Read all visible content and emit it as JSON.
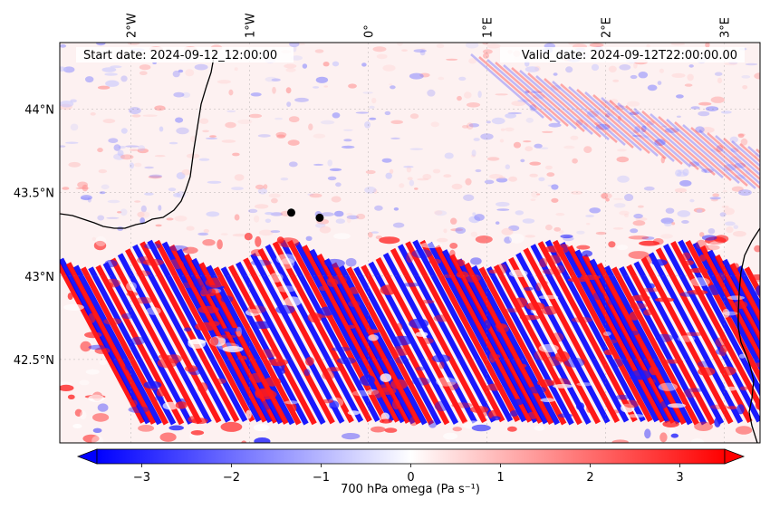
{
  "map": {
    "start_date": "Start date: 2024-09-12_12:00:00",
    "valid_date": "Valid_date: 2024-09-12T22:00:00.00",
    "lon_ticks": [
      {
        "label": "2°W",
        "lon": -2
      },
      {
        "label": "1°W",
        "lon": -1
      },
      {
        "label": "0°",
        "lon": 0
      },
      {
        "label": "1°E",
        "lon": 1
      },
      {
        "label": "2°E",
        "lon": 2
      },
      {
        "label": "3°E",
        "lon": 3
      }
    ],
    "lat_ticks": [
      {
        "label": "44°N",
        "lat": 44.0
      },
      {
        "label": "43.5°N",
        "lat": 43.5
      },
      {
        "label": "43°N",
        "lat": 43.0
      },
      {
        "label": "42.5°N",
        "lat": 42.5
      }
    ],
    "extent": {
      "lon": [
        -2.6,
        3.3
      ],
      "lat": [
        42.0,
        44.4
      ]
    },
    "stations": [
      {
        "lon": -0.65,
        "lat": 43.38
      },
      {
        "lon": -0.41,
        "lat": 43.35
      }
    ],
    "field": "700 hPa omega",
    "colormap": "bwr"
  },
  "colorbar": {
    "label": "700 hPa omega (Pa s⁻¹)",
    "min": -3.5,
    "max": 3.5,
    "ticks": [
      "−3",
      "−2",
      "−1",
      "0",
      "1",
      "2",
      "3"
    ],
    "tick_values": [
      -3,
      -2,
      -1,
      0,
      1,
      2,
      3
    ],
    "extend": "both",
    "colors": {
      "low": "#0000ff",
      "mid": "#ffffff",
      "high": "#ff0000"
    }
  }
}
